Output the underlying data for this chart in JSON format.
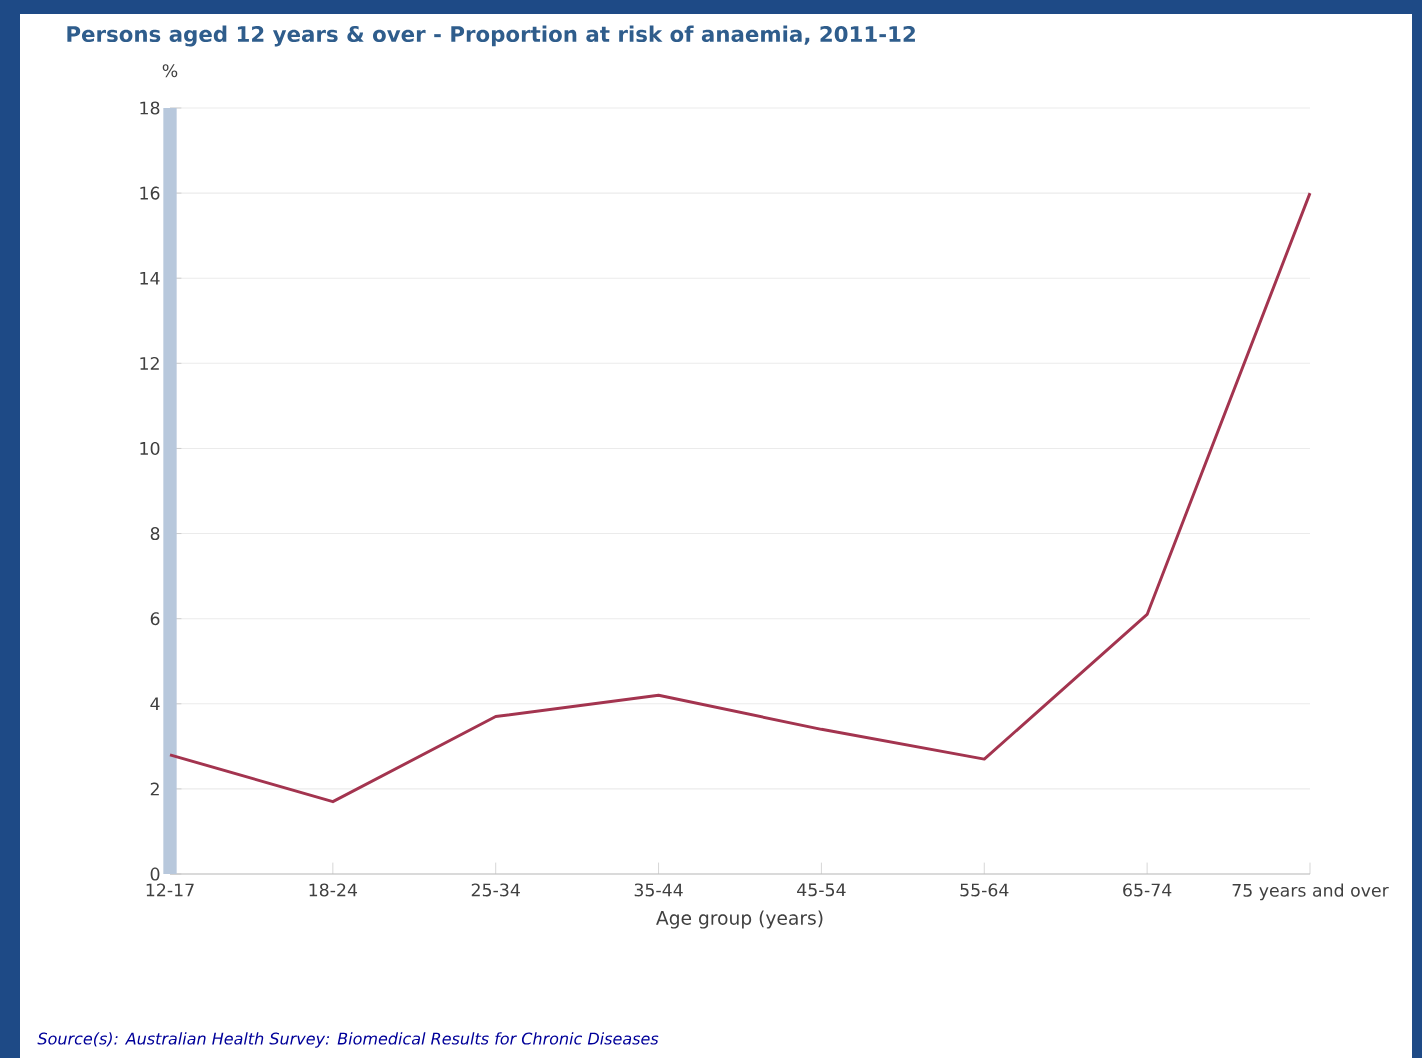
{
  "chart_data": {
    "type": "line",
    "title": "Persons aged 12 years & over - Proportion at risk of anaemia, 2011-12",
    "xlabel": "Age group (years)",
    "ylabel": "%",
    "categories": [
      "12-17",
      "18-24",
      "25-34",
      "35-44",
      "45-54",
      "55-64",
      "65-74",
      "75 years and over"
    ],
    "series": [
      {
        "color": "#a3344f",
        "values": [
          2.8,
          1.7,
          3.7,
          4.2,
          3.4,
          2.7,
          6.1,
          16.0
        ]
      }
    ],
    "ylim": [
      0,
      18
    ],
    "yticks": [
      0,
      2,
      4,
      6,
      8,
      10,
      12,
      14,
      16,
      18
    ],
    "grid": "y",
    "marker": "none",
    "line_style": "solid",
    "annotations": [
      "Source(s): Australian Health Survey: Biomedical Results for Chronic Diseases"
    ]
  }
}
